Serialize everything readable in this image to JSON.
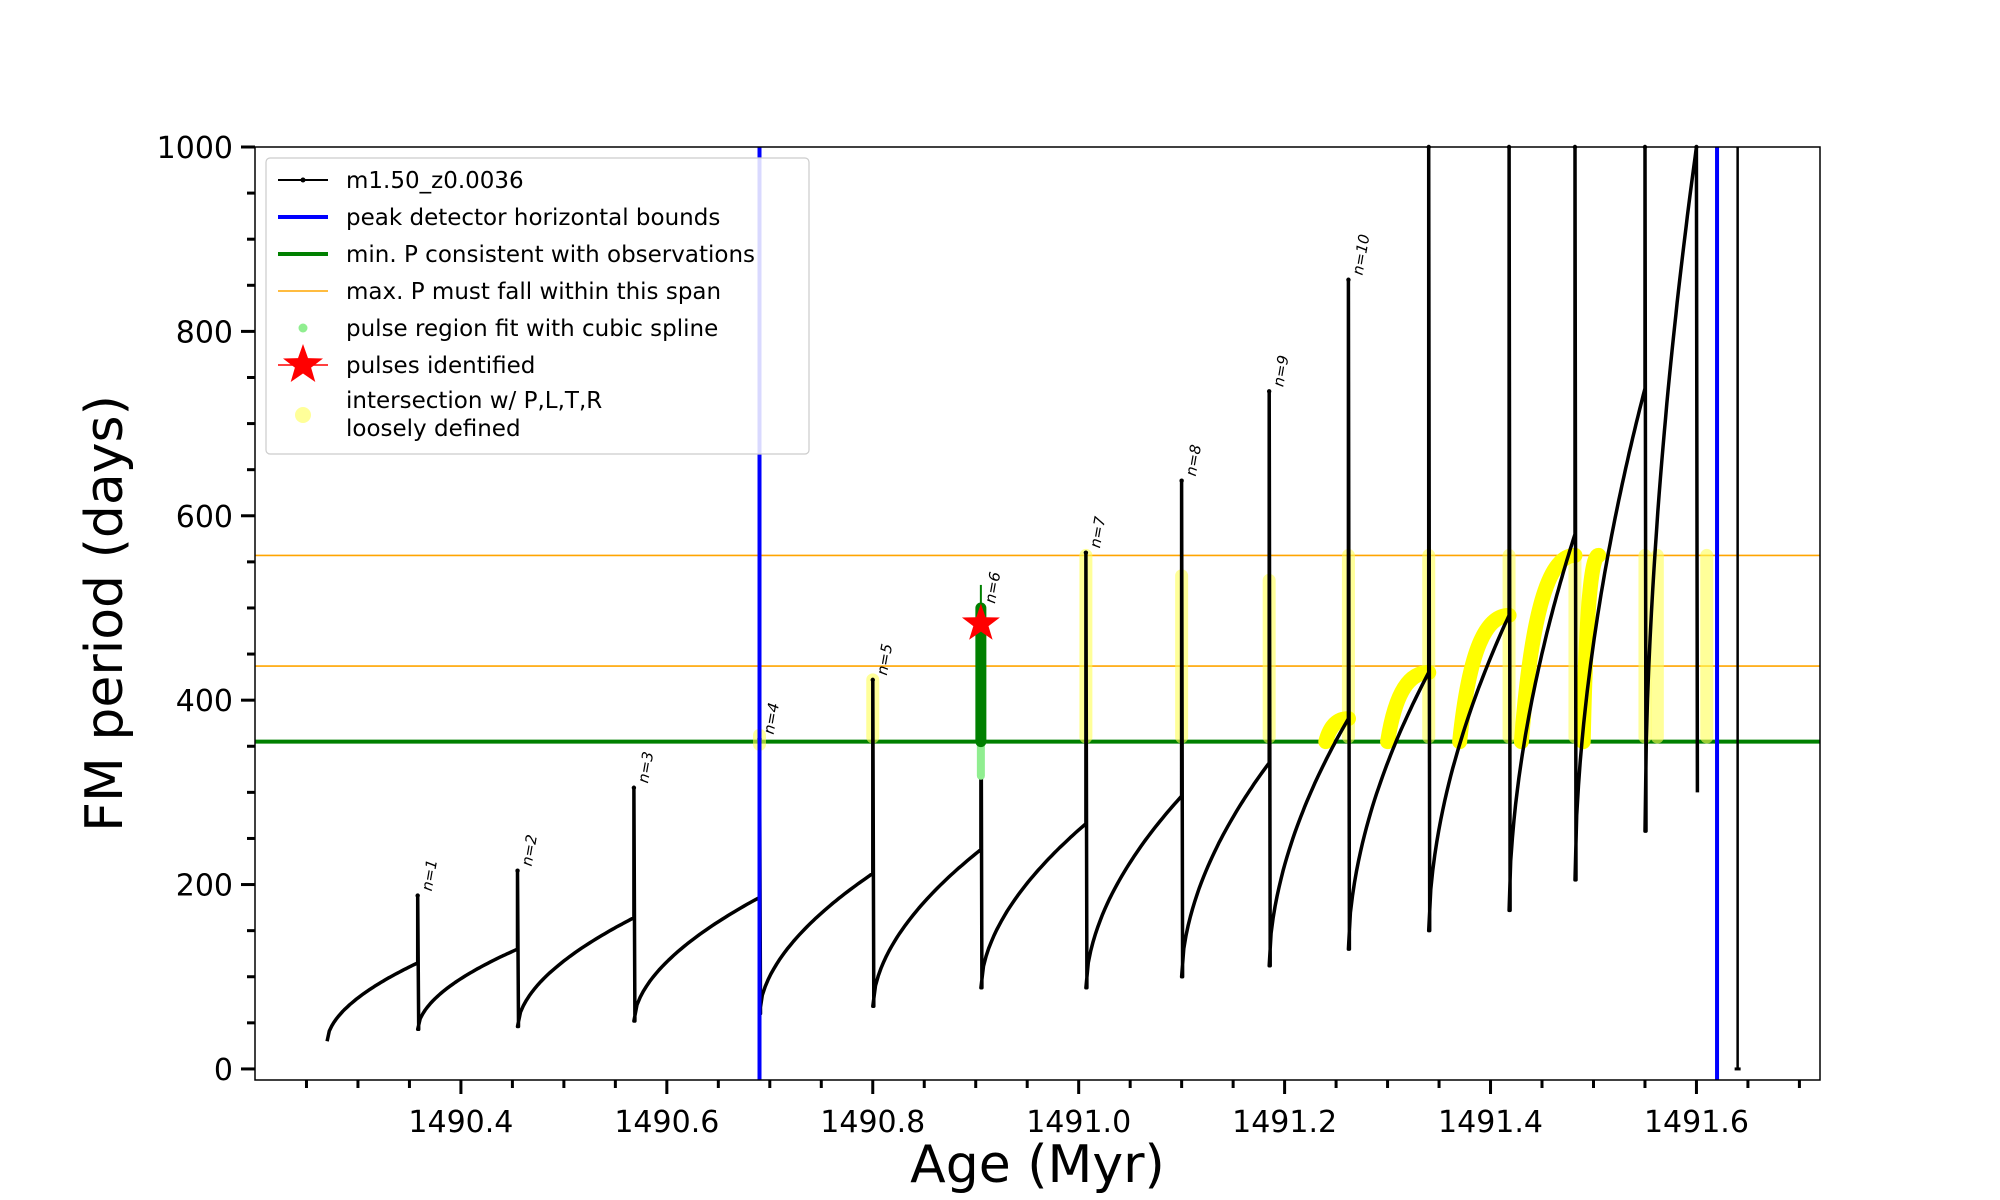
{
  "chart_data": {
    "type": "line",
    "xlabel": "Age (Myr)",
    "ylabel": "FM period (days)",
    "xlim": [
      1490.2,
      1491.72
    ],
    "ylim": [
      -12,
      1000
    ],
    "xticks": [
      1490.4,
      1490.6,
      1490.8,
      1491.0,
      1491.2,
      1491.4,
      1491.6
    ],
    "xtick_labels": [
      "1490.4",
      "1490.6",
      "1490.8",
      "1491.0",
      "1491.2",
      "1491.4",
      "1491.6"
    ],
    "yticks": [
      0,
      200,
      400,
      600,
      800,
      1000
    ],
    "ytick_labels": [
      "0",
      "200",
      "400",
      "600",
      "800",
      "1000"
    ],
    "legend_position": "top-left",
    "legend": [
      {
        "label": "m1.50_z0.0036",
        "kind": "line-marker",
        "color": "#000000"
      },
      {
        "label": "peak detector horizontal bounds",
        "kind": "line",
        "color": "#0000ff"
      },
      {
        "label": "min. P consistent with observations",
        "kind": "line",
        "color": "#008000"
      },
      {
        "label": "max. P must fall within this span",
        "kind": "thin-line",
        "color": "#ffa500"
      },
      {
        "label": "pulse region fit with cubic spline",
        "kind": "dot",
        "color": "#90ee90"
      },
      {
        "label": "pulses identified",
        "kind": "star",
        "color": "#ff0000"
      },
      {
        "label": "intersection w/ P,L,T,R\nloosely defined",
        "kind": "big-dot",
        "color": "#ffff99"
      }
    ],
    "series_name": "m1.50_z0.0036",
    "pulses": [
      {
        "start": 1490.27,
        "startP": 30,
        "peakX": 1490.358,
        "peakP": 115,
        "spikeP": 188,
        "minP": 43,
        "label": "n=1"
      },
      {
        "start": 1490.358,
        "startP": 43,
        "peakX": 1490.455,
        "peakP": 130,
        "spikeP": 215,
        "minP": 46,
        "label": "n=2"
      },
      {
        "start": 1490.455,
        "startP": 46,
        "peakX": 1490.568,
        "peakP": 164,
        "spikeP": 305,
        "minP": 52,
        "label": "n=3"
      },
      {
        "start": 1490.568,
        "startP": 52,
        "peakX": 1490.69,
        "peakP": 186,
        "spikeP": 358,
        "minP": 60,
        "label": "n=4"
      },
      {
        "start": 1490.69,
        "startP": 60,
        "peakX": 1490.8,
        "peakP": 212,
        "spikeP": 422,
        "minP": 68,
        "label": "n=5"
      },
      {
        "start": 1490.8,
        "startP": 68,
        "peakX": 1490.905,
        "peakP": 238,
        "spikeP": 500,
        "minP": 88,
        "label": "n=6"
      },
      {
        "start": 1490.905,
        "startP": 88,
        "peakX": 1491.007,
        "peakP": 266,
        "spikeP": 560,
        "minP": 88,
        "label": "n=7"
      },
      {
        "start": 1491.007,
        "startP": 88,
        "peakX": 1491.1,
        "peakP": 296,
        "spikeP": 638,
        "minP": 100,
        "label": "n=8"
      },
      {
        "start": 1491.1,
        "startP": 100,
        "peakX": 1491.185,
        "peakP": 332,
        "spikeP": 735,
        "minP": 112,
        "label": "n=9"
      },
      {
        "start": 1491.185,
        "startP": 112,
        "peakX": 1491.262,
        "peakP": 380,
        "spikeP": 856,
        "minP": 130,
        "label": "n=10"
      },
      {
        "start": 1491.262,
        "startP": 130,
        "peakX": 1491.34,
        "peakP": 430,
        "spikeP": 1000,
        "minP": 150,
        "label": ""
      },
      {
        "start": 1491.34,
        "startP": 150,
        "peakX": 1491.418,
        "peakP": 492,
        "spikeP": 1000,
        "minP": 172,
        "label": ""
      },
      {
        "start": 1491.418,
        "startP": 172,
        "peakX": 1491.482,
        "peakP": 580,
        "spikeP": 1000,
        "minP": 205,
        "label": ""
      },
      {
        "start": 1491.482,
        "startP": 205,
        "peakX": 1491.55,
        "peakP": 738,
        "spikeP": 1000,
        "minP": 258,
        "label": ""
      },
      {
        "start": 1491.55,
        "startP": 258,
        "peakX": 1491.6,
        "peakP": 1000,
        "spikeP": 1000,
        "minP": 300,
        "label": ""
      }
    ],
    "final_spike": {
      "x": 1491.64,
      "yTop": 1000,
      "yBottom": 0
    },
    "blue_bounds_x": [
      1490.69,
      1491.62
    ],
    "min_P": 355,
    "max_P_span": [
      437,
      557
    ],
    "spline_region": {
      "x": 1490.905,
      "yMin": 318,
      "yMax": 525
    },
    "pulse_identified": {
      "x": 1490.905,
      "y": 483
    },
    "yellow_columns": [
      {
        "x": 1490.69,
        "y0": 352,
        "y1": 362
      },
      {
        "x": 1490.8,
        "y0": 360,
        "y1": 422
      },
      {
        "x": 1491.007,
        "y0": 360,
        "y1": 557
      },
      {
        "x": 1491.1,
        "y0": 360,
        "y1": 535
      },
      {
        "x": 1491.185,
        "y0": 360,
        "y1": 530
      },
      {
        "x": 1491.262,
        "y0": 360,
        "y1": 557
      },
      {
        "x": 1491.34,
        "y0": 360,
        "y1": 557
      },
      {
        "x": 1491.418,
        "y0": 360,
        "y1": 557
      },
      {
        "x": 1491.482,
        "y0": 360,
        "y1": 557
      },
      {
        "x": 1491.55,
        "y0": 360,
        "y1": 557
      },
      {
        "x": 1491.562,
        "y0": 360,
        "y1": 557
      },
      {
        "x": 1491.61,
        "y0": 360,
        "y1": 557
      }
    ],
    "yellow_arcs": [
      {
        "x0": 1491.24,
        "y0": 355,
        "x1": 1491.262,
        "y1": 380
      },
      {
        "x0": 1491.3,
        "y0": 355,
        "x1": 1491.34,
        "y1": 430
      },
      {
        "x0": 1491.37,
        "y0": 355,
        "x1": 1491.418,
        "y1": 492
      },
      {
        "x0": 1491.43,
        "y0": 355,
        "x1": 1491.482,
        "y1": 557
      },
      {
        "x0": 1491.49,
        "y0": 355,
        "x1": 1491.505,
        "y1": 557
      }
    ]
  }
}
